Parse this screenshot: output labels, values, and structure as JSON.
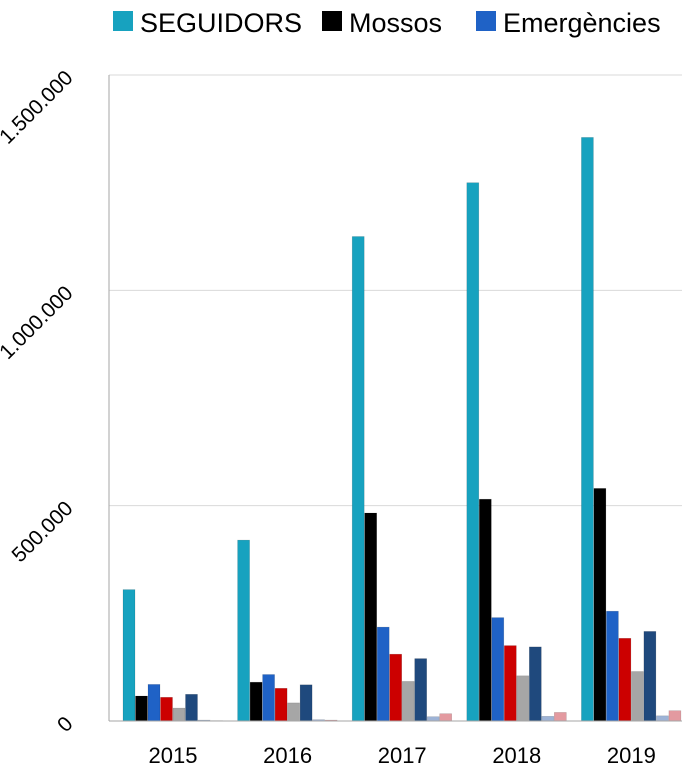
{
  "chart_data": {
    "type": "bar",
    "title": "",
    "xlabel": "",
    "ylabel": "",
    "categories": [
      "2015",
      "2016",
      "2017",
      "2018",
      "2019"
    ],
    "ylim": [
      0,
      1500000
    ],
    "yticks": [
      0,
      500000,
      1000000,
      1500000
    ],
    "ytick_labels": [
      "0",
      "500.000",
      "1.000.000",
      "1.500.000"
    ],
    "grid": true,
    "legend_position": "top",
    "series": [
      {
        "name": "SEGUIDORS",
        "color": "#17A2BF",
        "values": [
          305000,
          420000,
          1125000,
          1250000,
          1355000
        ]
      },
      {
        "name": "Mossos",
        "color": "#000000",
        "values": [
          58000,
          90000,
          483000,
          515000,
          540000
        ]
      },
      {
        "name": "Emergències",
        "color": "#1F62C6",
        "values": [
          85000,
          108000,
          218000,
          240000,
          255000
        ]
      },
      {
        "color": "#CC0000",
        "values": [
          55000,
          76000,
          155000,
          175000,
          192000
        ]
      },
      {
        "color": "#A6A6A6",
        "values": [
          30000,
          42000,
          92000,
          105000,
          115000
        ]
      },
      {
        "color": "#1F497D",
        "values": [
          62000,
          84000,
          145000,
          172000,
          208000
        ]
      },
      {
        "color": "#9DB3D6",
        "values": [
          2000,
          3000,
          10000,
          11000,
          12000
        ]
      },
      {
        "color": "#E39AA0",
        "values": [
          1000,
          2000,
          17000,
          20000,
          24000
        ]
      }
    ]
  }
}
